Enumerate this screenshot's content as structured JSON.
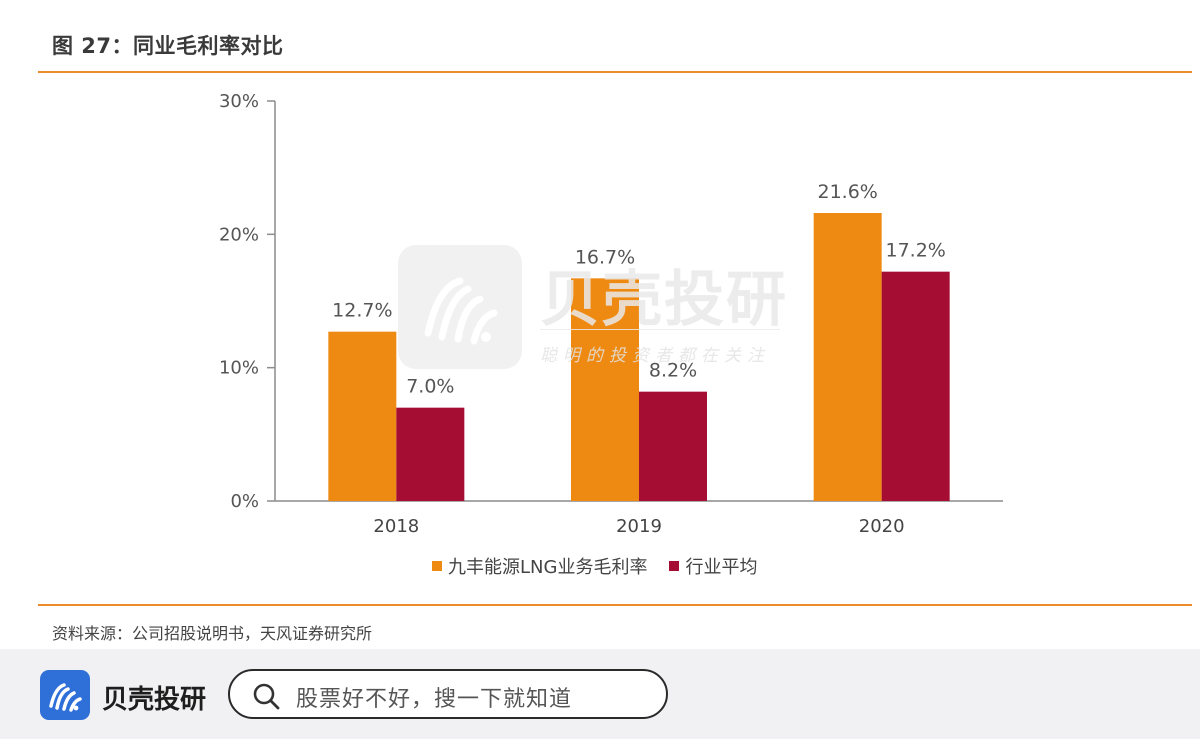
{
  "figure": {
    "title": "图 27：同业毛利率对比",
    "source": "资料来源：公司招股说明书，天风证券研究所"
  },
  "watermark": {
    "name": "贝壳投研",
    "tagline": "聪明的投资者都在关注"
  },
  "bottom_bar": {
    "app_name": "贝壳投研",
    "search_placeholder": "股票好不好，搜一下就知道"
  },
  "colors": {
    "series1": "#ee8a12",
    "series2": "#a50d33",
    "rule": "#ec8a2c",
    "brand": "#2f6fd8"
  },
  "chart_data": {
    "type": "bar",
    "categories": [
      "2018",
      "2019",
      "2020"
    ],
    "series": [
      {
        "name": "九丰能源LNG业务毛利率",
        "values": [
          12.7,
          16.7,
          21.6
        ],
        "labels": [
          "12.7%",
          "16.7%",
          "21.6%"
        ]
      },
      {
        "name": "行业平均",
        "values": [
          7.0,
          8.2,
          17.2
        ],
        "labels": [
          "7.0%",
          "8.2%",
          "17.2%"
        ]
      }
    ],
    "y_ticks": [
      "0%",
      "10%",
      "20%",
      "30%"
    ],
    "ylim": [
      0,
      30
    ],
    "grid": false,
    "legend_position": "bottom"
  }
}
